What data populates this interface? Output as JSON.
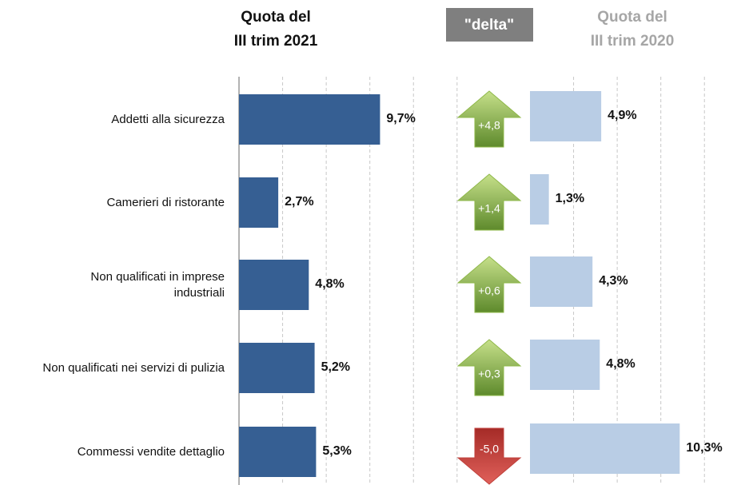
{
  "chart_data": {
    "type": "bar",
    "categories": [
      "Addetti alla sicurezza",
      "Camerieri di ristorante",
      "Non qualificati in imprese\nindustriali",
      "Non qualificati nei servizi di pulizia",
      "Commessi vendite dettaglio"
    ],
    "series": [
      {
        "name": "Quota del\nIII trim 2021",
        "color": "#365f93",
        "values": [
          9.7,
          2.7,
          4.8,
          5.2,
          5.3
        ],
        "value_labels": [
          "9,7%",
          "2,7%",
          "4,8%",
          "5,2%",
          "5,3%"
        ]
      },
      {
        "name": "Quota del\nIII trim 2020",
        "color": "#b9cde5",
        "values": [
          4.9,
          1.3,
          4.3,
          4.8,
          10.3
        ],
        "value_labels": [
          "4,9%",
          "1,3%",
          "4,3%",
          "4,8%",
          "10,3%"
        ]
      }
    ],
    "delta": {
      "name": "\"delta\"",
      "values": [
        4.8,
        1.4,
        0.6,
        0.3,
        -5.0
      ],
      "value_labels": [
        "+4,8",
        "+1,4",
        "+0,6",
        "+0,3",
        "-5,0"
      ],
      "up_color": "#8fb84a",
      "down_color": "#c0413c"
    },
    "xlim": [
      0,
      16
    ],
    "xticks": [
      0,
      3,
      6,
      9,
      12,
      15
    ],
    "grid": true
  }
}
